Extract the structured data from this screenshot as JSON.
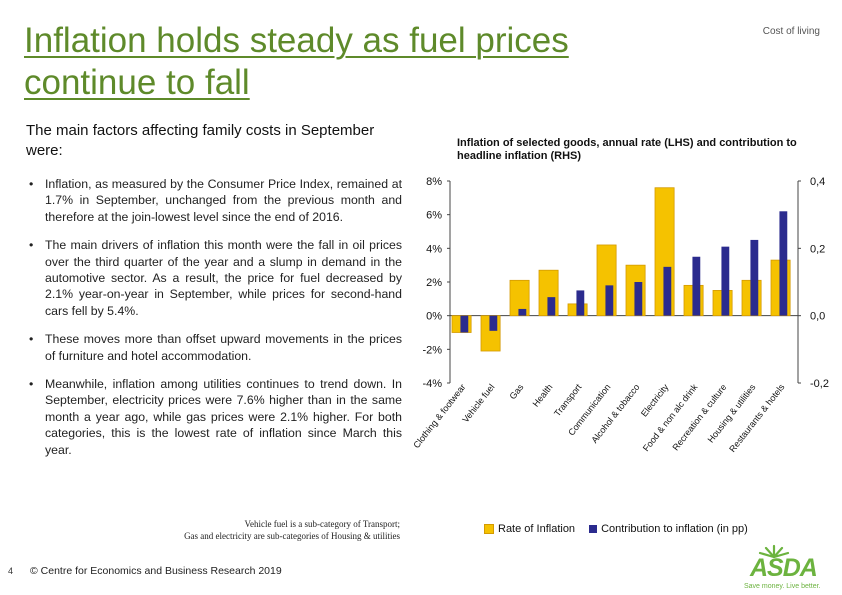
{
  "header": {
    "title": "Inflation holds steady as fuel prices continue to fall",
    "tag": "Cost of living"
  },
  "subtitle": "The main factors affecting family costs in September were:",
  "bullets": [
    "Inflation, as measured by the Consumer Price Index, remained at 1.7% in September, unchanged from the previous month and therefore at the join-lowest level since the end of 2016.",
    "The main drivers of inflation this month were the fall in oil prices over the third quarter of the year and a slump in demand in the automotive sector. As a result, the price for fuel decreased by 2.1% year-on-year in September, while prices for second-hand cars fell by 5.4%.",
    "These moves more than offset upward movements in the prices of furniture and hotel accommodation.",
    "Meanwhile, inflation among utilities continues to trend down. In September, electricity prices were 7.6% higher than in the same month a year ago, while gas prices were 2.1% higher. For both categories, this is the lowest rate of inflation since March this year."
  ],
  "bullet_marker": "•",
  "note": {
    "line1": "Vehicle fuel is a sub-category of Transport;",
    "line2": "Gas and electricity are sub-categories of Housing & utilities"
  },
  "footer": {
    "page": "4",
    "copyright": "© Centre for Economics and Business Research 2019"
  },
  "logo": {
    "word": "ASDA",
    "tagline": "Save money. Live better."
  },
  "colors": {
    "title": "#5e8a2a",
    "inflation_bar": "#f5c200",
    "contribution_bar": "#2b2b8e",
    "brand": "#6cb33f"
  },
  "chart_data": {
    "type": "bar",
    "title": "Inflation of selected goods, annual rate (LHS) and contribution to headline inflation (RHS)",
    "categories": [
      "Clothing & footwear",
      "Vehicle fuel",
      "Gas",
      "Health",
      "Transport",
      "Communication",
      "Alcohol & tobacco",
      "Electricity",
      "Food & non alc drink",
      "Recreation & culture",
      "Housing & utilities",
      "Restaurants & hotels"
    ],
    "category_labels": [
      "Clothing & footwear",
      "Vehicle fuel",
      "Gas",
      "Health",
      "Transport",
      "Communication",
      "Alcohol & tobacco",
      "Electricity",
      "Food & non alc drink",
      "Recreation & culture",
      "Housing & utilities",
      "Restaurants & hotels"
    ],
    "series": [
      {
        "name": "Rate of Inflation",
        "axis": "left",
        "values": [
          -1.0,
          -2.1,
          2.1,
          2.7,
          0.7,
          4.2,
          3.0,
          7.6,
          1.8,
          1.5,
          2.1,
          3.3
        ]
      },
      {
        "name": "Contribution to inflation (in pp)",
        "axis": "right",
        "values": [
          -0.05,
          -0.045,
          0.02,
          0.055,
          0.075,
          0.09,
          0.1,
          0.145,
          0.175,
          0.205,
          0.225,
          0.31
        ]
      }
    ],
    "ylim_left": [
      -4,
      8
    ],
    "yticks_left": [
      "-4%",
      "-2%",
      "0%",
      "2%",
      "4%",
      "6%",
      "8%"
    ],
    "ylim_right": [
      -0.2,
      0.4
    ],
    "yticks_right": [
      "-0,2",
      "0,0",
      "0,2",
      "0,4"
    ],
    "legend": [
      "Rate of Inflation",
      "Contribution to inflation (in pp)"
    ],
    "legend_position": "bottom"
  }
}
